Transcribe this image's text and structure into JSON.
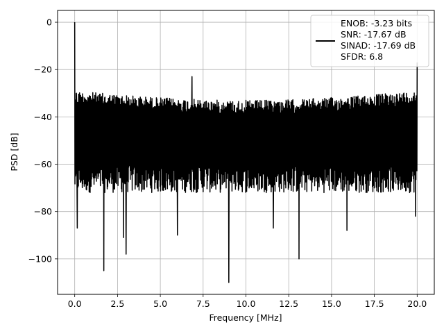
{
  "chart_data": {
    "type": "line",
    "xlabel": "Frequency [MHz]",
    "ylabel": "PSD [dB]",
    "xlim": [
      -1,
      21
    ],
    "ylim": [
      -115,
      5
    ],
    "xticks": [
      0.0,
      2.5,
      5.0,
      7.5,
      10.0,
      12.5,
      15.0,
      17.5,
      20.0
    ],
    "xtick_labels": [
      "0.0",
      "2.5",
      "5.0",
      "7.5",
      "10.0",
      "12.5",
      "15.0",
      "17.5",
      "20.0"
    ],
    "yticks": [
      0,
      -20,
      -40,
      -60,
      -80,
      -100
    ],
    "ytick_labels": [
      "0",
      "−20",
      "−40",
      "−60",
      "−80",
      "−100"
    ],
    "grid": true,
    "legend_position": "top-right",
    "series": [
      {
        "name": "ENOB: -3.23 bits\nSNR: -17.67 dB\nSINAD: -17.69 dB\nSFDR: 6.8",
        "color": "#000000",
        "noise_floor_range": [
          -82,
          -29
        ],
        "x": [
          0.0,
          0.05,
          0.1,
          0.15,
          0.2,
          1.7,
          2.85,
          3.0,
          6.0,
          6.85,
          9.0,
          11.6,
          13.1,
          15.9,
          19.9,
          20.0
        ],
        "y": [
          0,
          -65,
          -30,
          -87,
          -34,
          -105,
          -91,
          -98,
          -90,
          -23,
          -110,
          -87,
          -100,
          -88,
          -82,
          -17
        ]
      }
    ],
    "legend_lines": [
      "ENOB: -3.23 bits",
      "SNR: -17.67 dB",
      "SINAD: -17.69 dB",
      "SFDR: 6.8"
    ]
  }
}
